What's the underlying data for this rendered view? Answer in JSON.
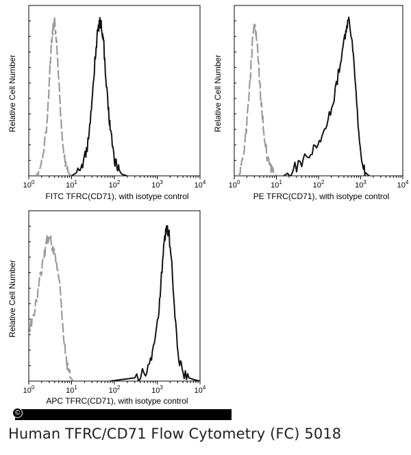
{
  "chart_data": [
    {
      "type": "histogram",
      "xlabel": "FITC TFRC(CD71), with isotype control",
      "ylabel": "Relative Cell Number",
      "xscale": "log",
      "xlim": [
        1,
        10000
      ],
      "x_ticks": [
        {
          "value": 1,
          "base": "10",
          "exp": "0"
        },
        {
          "value": 10,
          "base": "10",
          "exp": "1"
        },
        {
          "value": 100,
          "base": "10",
          "exp": "2"
        },
        {
          "value": 1000,
          "base": "10",
          "exp": "3"
        },
        {
          "value": 10000,
          "base": "10",
          "exp": "4"
        }
      ],
      "series": [
        {
          "name": "isotype control",
          "style": "dashed",
          "color": "#9a9a9a",
          "x": [
            1.5,
            2.0,
            2.5,
            3.0,
            3.3,
            3.7,
            4.0,
            4.4,
            5.0,
            5.6,
            6.3,
            7.0,
            8.0,
            9.0,
            10.0
          ],
          "y": [
            0,
            8,
            25,
            55,
            80,
            90,
            95,
            85,
            60,
            38,
            18,
            8,
            3,
            1,
            0
          ]
        },
        {
          "name": "TFRC(CD71)",
          "style": "solid",
          "color": "#111111",
          "x": [
            10,
            15,
            20,
            25,
            30,
            35,
            40,
            45,
            50,
            55,
            60,
            70,
            80,
            100,
            120,
            150,
            200
          ],
          "y": [
            0,
            3,
            10,
            22,
            45,
            70,
            88,
            95,
            92,
            85,
            70,
            45,
            28,
            10,
            4,
            1,
            0
          ]
        }
      ]
    },
    {
      "type": "histogram",
      "xlabel": "PE TFRC(CD71), with isotype control",
      "ylabel": "Relative Cell Number",
      "xscale": "log",
      "xlim": [
        1,
        10000
      ],
      "x_ticks": [
        {
          "value": 1,
          "base": "10",
          "exp": "0"
        },
        {
          "value": 10,
          "base": "10",
          "exp": "1"
        },
        {
          "value": 100,
          "base": "10",
          "exp": "2"
        },
        {
          "value": 1000,
          "base": "10",
          "exp": "3"
        },
        {
          "value": 10000,
          "base": "10",
          "exp": "4"
        }
      ],
      "series": [
        {
          "name": "isotype control",
          "style": "dashed",
          "color": "#9a9a9a",
          "x": [
            1.3,
            1.6,
            2.0,
            2.4,
            2.7,
            3.0,
            3.3,
            3.7,
            4.2,
            5.0,
            6.0,
            7.5,
            9.0,
            11.0
          ],
          "y": [
            0,
            10,
            32,
            60,
            82,
            93,
            88,
            72,
            50,
            28,
            12,
            4,
            1,
            0
          ]
        },
        {
          "name": "TFRC(CD71)",
          "style": "solid",
          "color": "#111111",
          "x": [
            15,
            25,
            40,
            60,
            90,
            130,
            180,
            250,
            330,
            420,
            480,
            550,
            650,
            750,
            900,
            1100,
            1300,
            1600
          ],
          "y": [
            0,
            4,
            9,
            14,
            20,
            27,
            37,
            52,
            70,
            85,
            94,
            95,
            80,
            55,
            28,
            8,
            2,
            0
          ]
        }
      ]
    },
    {
      "type": "histogram",
      "xlabel": "APC TFRC(CD71), with isotype control",
      "ylabel": "Relative Cell Number",
      "xscale": "log",
      "xlim": [
        1,
        10000
      ],
      "x_ticks": [
        {
          "value": 1,
          "base": "10",
          "exp": "0"
        },
        {
          "value": 10,
          "base": "10",
          "exp": "1"
        },
        {
          "value": 100,
          "base": "10",
          "exp": "2"
        },
        {
          "value": 1000,
          "base": "10",
          "exp": "3"
        },
        {
          "value": 10000,
          "base": "10",
          "exp": "4"
        }
      ],
      "series": [
        {
          "name": "isotype control",
          "style": "dashed",
          "color": "#9a9a9a",
          "x": [
            1.0,
            1.2,
            1.5,
            1.8,
            2.2,
            2.6,
            3.0,
            3.5,
            4.0,
            4.6,
            5.3,
            6.0,
            7.0,
            8.0,
            9.5,
            11.0
          ],
          "y": [
            32,
            38,
            48,
            62,
            75,
            86,
            90,
            84,
            78,
            70,
            58,
            40,
            20,
            8,
            2,
            0
          ]
        },
        {
          "name": "TFRC(CD71)",
          "style": "solid",
          "color": "#111111",
          "x": [
            80,
            150,
            300,
            500,
            700,
            900,
            1100,
            1300,
            1500,
            1700,
            1900,
            2200,
            2600,
            3200,
            4000,
            5500,
            7000,
            10000
          ],
          "y": [
            0,
            1,
            2,
            5,
            12,
            25,
            45,
            70,
            88,
            95,
            90,
            70,
            40,
            15,
            5,
            2,
            1,
            0
          ]
        }
      ]
    }
  ],
  "caption": "Human TFRC/CD71 Flow Cytometry (FC) 5018",
  "copyright_symbol": "©"
}
